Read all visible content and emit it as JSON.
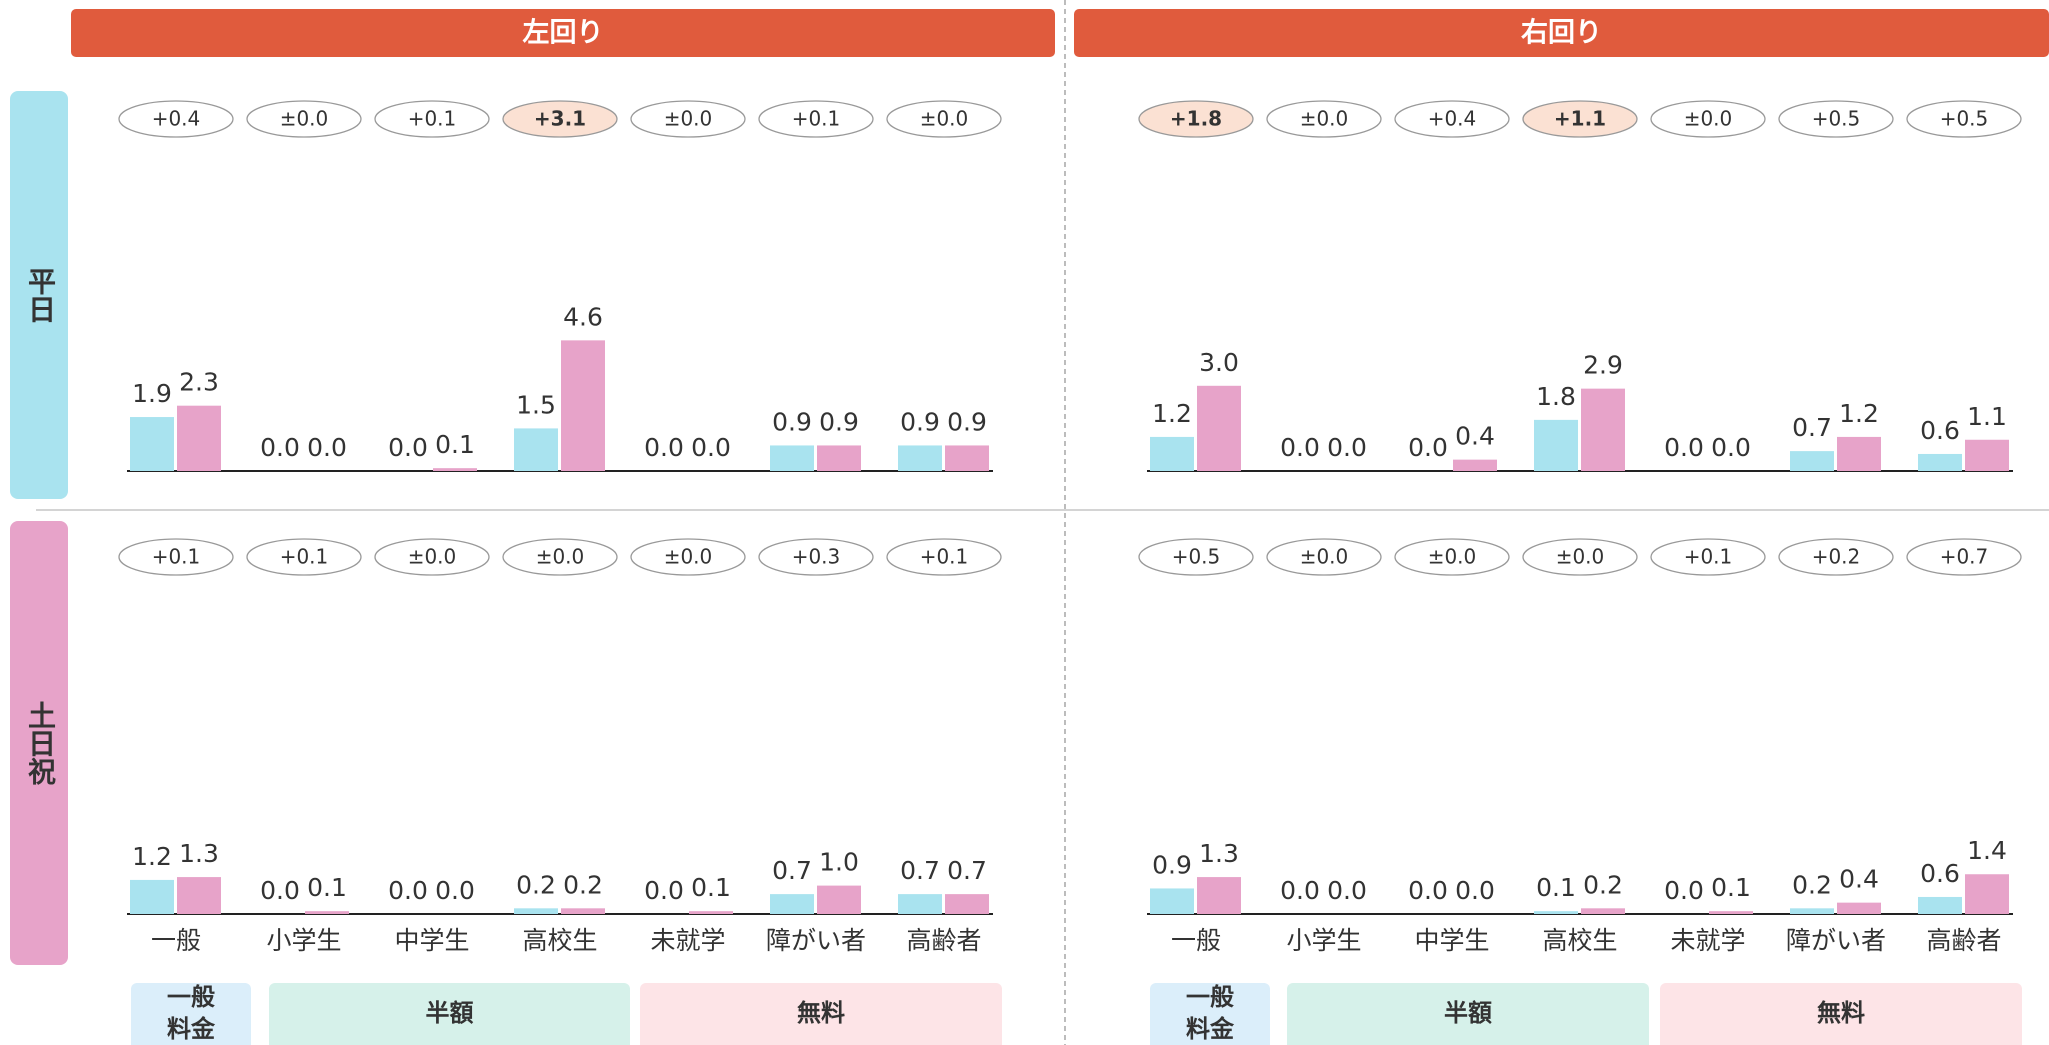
{
  "columns": [
    "左回り",
    "右回り"
  ],
  "rows": [
    "平日",
    "土日祝"
  ],
  "categories": [
    "一般",
    "小学生",
    "中学生",
    "高校生",
    "未就学",
    "障がい者",
    "高齢者"
  ],
  "groups": [
    {
      "label_lines": [
        "一般",
        "料金"
      ],
      "color": "#dbeefa"
    },
    {
      "label_lines": [
        "半額"
      ],
      "color": "#d6f1ea"
    },
    {
      "label_lines": [
        "無料"
      ],
      "color": "#fde4e7"
    }
  ],
  "chart_data": [
    {
      "type": "bar",
      "diffs": [
        "+0.4",
        "±0.0",
        "+0.1",
        "+3.1",
        "±0.0",
        "+0.1",
        "±0.0"
      ],
      "highlight": [
        3
      ],
      "series": [
        {
          "color": "#a9e3ef",
          "values": [
            1.9,
            0,
            0,
            1.5,
            0,
            0.9,
            0.9
          ],
          "value_labels": [
            "1.9",
            "0.0",
            "0.0",
            "1.5",
            "0.0",
            "0.9",
            "0.9"
          ]
        },
        {
          "color": "#e7a3c9",
          "values": [
            2.3,
            0,
            0.1,
            4.6,
            0,
            0.9,
            0.9
          ],
          "value_labels": [
            "2.3",
            "0.0",
            "0.1",
            "4.6",
            "0.0",
            "0.9",
            "0.9"
          ]
        }
      ]
    },
    {
      "type": "bar",
      "diffs": [
        "+1.8",
        "±0.0",
        "+0.4",
        "+1.1",
        "±0.0",
        "+0.5",
        "+0.5"
      ],
      "highlight": [
        0,
        3
      ],
      "series": [
        {
          "color": "#a9e3ef",
          "values": [
            1.2,
            0,
            0,
            1.8,
            0,
            0.7,
            0.6
          ],
          "value_labels": [
            "1.2",
            "0.0",
            "0.0",
            "1.8",
            "0.0",
            "0.7",
            "0.6"
          ]
        },
        {
          "color": "#e7a3c9",
          "values": [
            3.0,
            0,
            0.4,
            2.9,
            0,
            1.2,
            1.1
          ],
          "value_labels": [
            "3.0",
            "0.0",
            "0.4",
            "2.9",
            "0.0",
            "1.2",
            "1.1"
          ]
        }
      ]
    },
    {
      "type": "bar",
      "diffs": [
        "+0.1",
        "+0.1",
        "±0.0",
        "±0.0",
        "±0.0",
        "+0.3",
        "+0.1"
      ],
      "highlight": [],
      "series": [
        {
          "color": "#a9e3ef",
          "values": [
            1.2,
            0,
            0,
            0.2,
            0,
            0.7,
            0.7
          ],
          "value_labels": [
            "1.2",
            "0.0",
            "0.0",
            "0.2",
            "0.0",
            "0.7",
            "0.7"
          ]
        },
        {
          "color": "#e7a3c9",
          "values": [
            1.3,
            0.1,
            0,
            0.2,
            0.1,
            1.0,
            0.7
          ],
          "value_labels": [
            "1.3",
            "0.1",
            "0.0",
            "0.2",
            "0.1",
            "1.0",
            "0.7"
          ]
        }
      ]
    },
    {
      "type": "bar",
      "diffs": [
        "+0.5",
        "±0.0",
        "±0.0",
        "±0.0",
        "+0.1",
        "+0.2",
        "+0.7"
      ],
      "highlight": [],
      "series": [
        {
          "color": "#a9e3ef",
          "values": [
            0.9,
            0,
            0,
            0.1,
            0,
            0.2,
            0.6
          ],
          "value_labels": [
            "0.9",
            "0.0",
            "0.0",
            "0.1",
            "0.0",
            "0.2",
            "0.6"
          ]
        },
        {
          "color": "#e7a3c9",
          "values": [
            1.3,
            0,
            0,
            0.2,
            0.1,
            0.4,
            1.4
          ],
          "value_labels": [
            "1.3",
            "0.0",
            "0.0",
            "0.2",
            "0.1",
            "0.4",
            "1.4"
          ]
        }
      ]
    }
  ]
}
